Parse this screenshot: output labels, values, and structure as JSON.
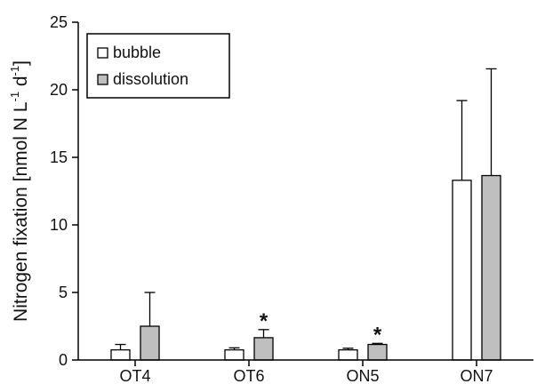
{
  "chart_data": {
    "type": "bar",
    "categories": [
      "OT4",
      "OT6",
      "ON5",
      "ON7"
    ],
    "series": [
      {
        "name": "bubble",
        "values": [
          0.75,
          0.75,
          0.75,
          13.3
        ],
        "errors": [
          0.4,
          0.15,
          0.12,
          5.9
        ],
        "color": "#ffffff"
      },
      {
        "name": "dissolution",
        "values": [
          2.5,
          1.65,
          1.15,
          13.65
        ],
        "errors": [
          2.5,
          0.6,
          0.08,
          7.9
        ],
        "color": "#bfbfbf"
      }
    ],
    "annotations": [
      {
        "category": "OT6",
        "series": "dissolution",
        "text": "*"
      },
      {
        "category": "ON5",
        "series": "dissolution",
        "text": "*"
      }
    ],
    "ylabel": "Nitrogen fixation [nmol N L⁻¹ d⁻¹]",
    "ylabel_parts": {
      "prefix": "Nitrogen fixation [nmol N L",
      "sup1": "-1",
      "mid": " d",
      "sup2": "-1",
      "suffix": "]"
    },
    "xlabel": "",
    "ylim": [
      0,
      25
    ],
    "yticks": [
      0,
      5,
      10,
      15,
      20,
      25
    ],
    "grid": false,
    "legend_position": "top-left",
    "bar_edge_color": "#000000"
  }
}
